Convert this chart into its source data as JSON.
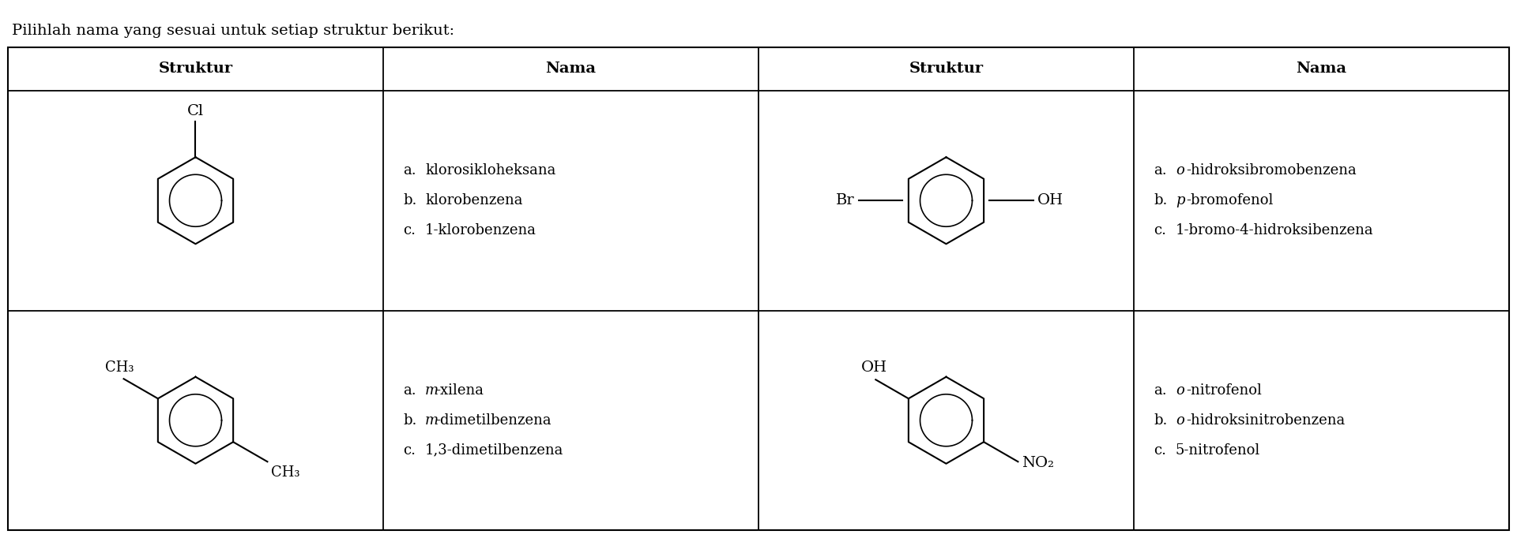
{
  "title": "Pilihlah nama yang sesuai untuk setiap struktur berikut:",
  "title_fontsize": 14,
  "bg_color": "#ffffff",
  "table_line_color": "#000000",
  "col_headers": [
    "Struktur",
    "Nama",
    "Struktur",
    "Nama"
  ],
  "names_row1_left": [
    [
      "a.",
      "klorosikloheksana",
      false
    ],
    [
      "b.",
      "klorobenzena",
      false
    ],
    [
      "c.",
      "1-klorobenzena",
      false
    ]
  ],
  "names_row1_right": [
    [
      "a.",
      "o",
      "-hidroksibromobenzena",
      true
    ],
    [
      "b.",
      "p",
      "-bromofenol",
      true
    ],
    [
      "c.",
      "1-bromo-4-hidroksibenzena",
      false
    ]
  ],
  "names_row2_left": [
    [
      "a.",
      "m",
      "-xilena",
      true
    ],
    [
      "b.",
      "m",
      "-dimetilbenzena",
      true
    ],
    [
      "c.",
      "1,3-dimetilbenzena",
      false
    ]
  ],
  "names_row2_right": [
    [
      "a.",
      "o",
      "-nitrofenol",
      true
    ],
    [
      "b.",
      "o",
      "-hidroksinitrobenzena",
      true
    ],
    [
      "c.",
      "5-nitrofenol",
      false
    ]
  ],
  "font_size_names": 13,
  "font_size_header": 14,
  "font_size_struct": 13
}
